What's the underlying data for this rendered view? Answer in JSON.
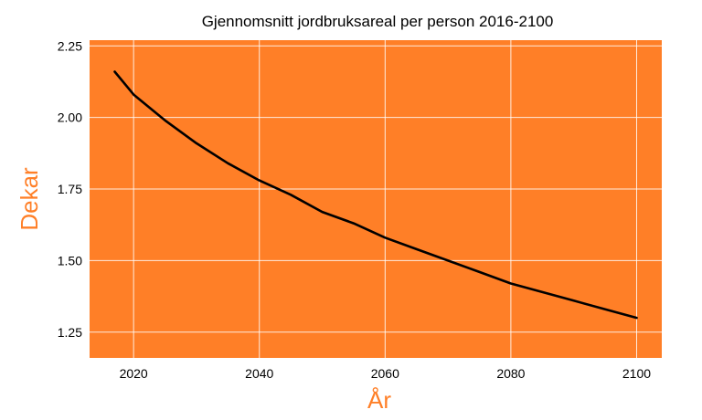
{
  "chart_data": {
    "type": "line",
    "title": "Gjennomsnitt jordbruksareal per person 2016-2100",
    "xlabel": "År",
    "ylabel": "Dekar",
    "xlim": [
      2013,
      2104
    ],
    "ylim": [
      1.16,
      2.27
    ],
    "xticks": [
      2020,
      2040,
      2060,
      2080,
      2100
    ],
    "yticks": [
      1.25,
      1.5,
      1.75,
      2.0,
      2.25
    ],
    "xtick_labels": [
      "2020",
      "2040",
      "2060",
      "2080",
      "2100"
    ],
    "ytick_labels": [
      "1.25",
      "1.50",
      "1.75",
      "2.00",
      "2.25"
    ],
    "grid": true,
    "colors": {
      "plot_background": "#ff7f27",
      "grid": "#ffffff",
      "line": "#000000",
      "ylabel": "#ff7f27",
      "xlabel": "#ff7f27",
      "text": "#000000"
    },
    "series": [
      {
        "x": [
          2017,
          2020,
          2025,
          2030,
          2035,
          2040,
          2045,
          2050,
          2055,
          2060,
          2065,
          2070,
          2075,
          2080,
          2085,
          2090,
          2095,
          2100
        ],
        "values": [
          2.16,
          2.08,
          1.99,
          1.91,
          1.84,
          1.78,
          1.73,
          1.67,
          1.63,
          1.58,
          1.54,
          1.5,
          1.46,
          1.42,
          1.39,
          1.36,
          1.33,
          1.3
        ]
      }
    ]
  }
}
